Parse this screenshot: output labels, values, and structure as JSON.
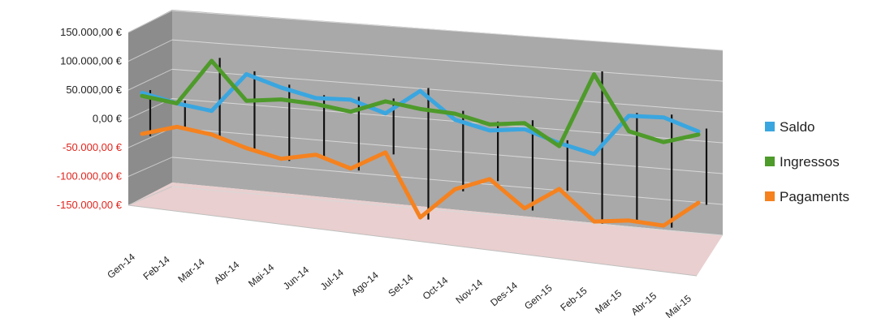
{
  "chart_data": {
    "type": "line",
    "title": "",
    "xlabel": "",
    "ylabel": "",
    "categories": [
      "Gen-14",
      "Feb-14",
      "Mar-14",
      "Abr-14",
      "Mai-14",
      "Jun-14",
      "Jul-14",
      "Ago-14",
      "Set-14",
      "Oct-14",
      "Nov-14",
      "Des-14",
      "Gen-15",
      "Feb-15",
      "Mar-15",
      "Abr-15",
      "Mai-15"
    ],
    "yticks": [
      "150.000,00 €",
      "100.000,00 €",
      "50.000,00 €",
      "0,00 €",
      "-50.000,00 €",
      "-100.000,00 €",
      "-150.000,00 €"
    ],
    "ylim": [
      -150000,
      150000
    ],
    "series": [
      {
        "name": "Saldo",
        "color": "#3aa6e0",
        "values": [
          35000,
          20000,
          10000,
          75000,
          55000,
          40000,
          40000,
          20000,
          60000,
          15000,
          0,
          5000,
          -15000,
          -30000,
          35000,
          35000,
          15000
        ]
      },
      {
        "name": "Ingressos",
        "color": "#4e9a2a",
        "values": [
          30000,
          20000,
          95000,
          30000,
          35000,
          30000,
          20000,
          40000,
          30000,
          25000,
          10000,
          15000,
          -20000,
          100000,
          10000,
          -5000,
          10000
        ]
      },
      {
        "name": "Pagaments",
        "color": "#f5821f",
        "values": [
          -35000,
          -20000,
          -30000,
          -50000,
          -65000,
          -55000,
          -75000,
          -45000,
          -150000,
          -100000,
          -80000,
          -125000,
          -90000,
          -140000,
          -135000,
          -140000,
          -100000
        ]
      }
    ],
    "legend_position": "right",
    "grid": true
  }
}
